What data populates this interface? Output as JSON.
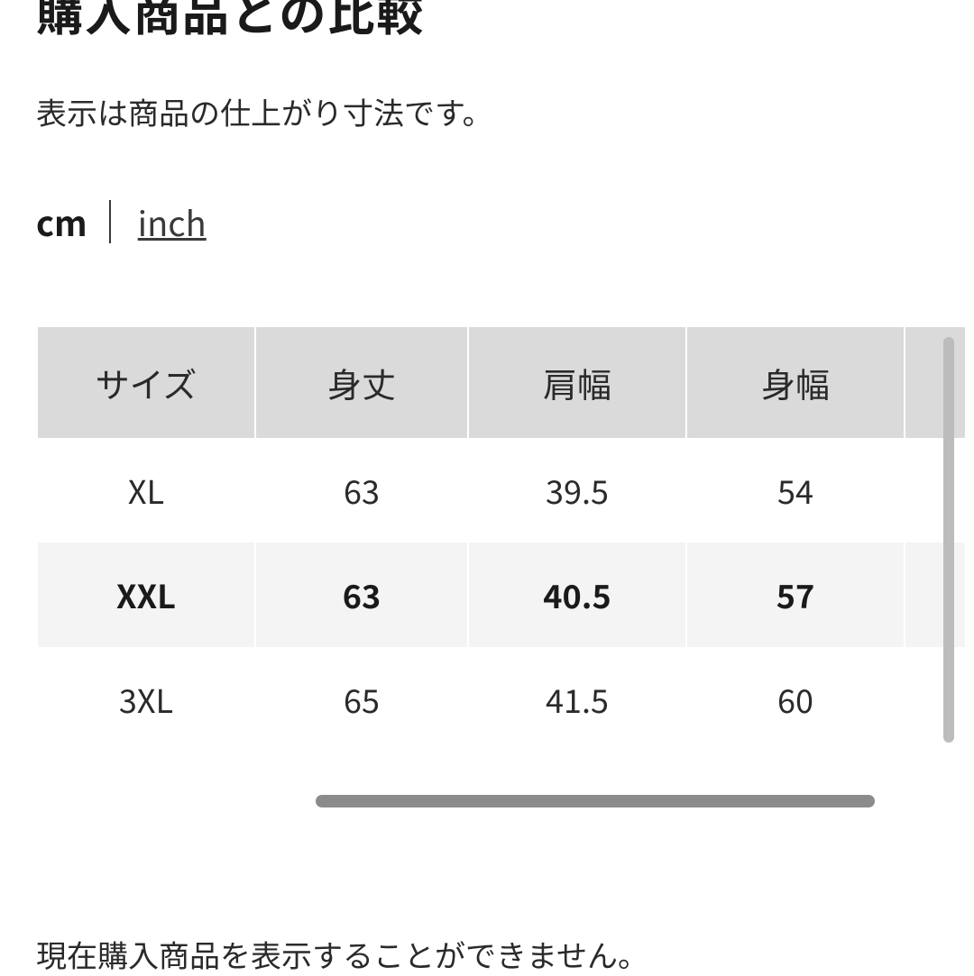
{
  "header": {
    "title": "購入商品との比較",
    "subtitle": "表示は商品の仕上がり寸法です。"
  },
  "unit_toggle": {
    "active": "cm",
    "link": "inch"
  },
  "size_table": {
    "type": "table",
    "header_bg": "#dadada",
    "highlight_bg": "#f4f4f4",
    "text_color": "#2a2a2a",
    "columns": [
      "サイズ",
      "身丈",
      "肩幅",
      "身幅",
      ""
    ],
    "rows": [
      {
        "cells": [
          "XL",
          "63",
          "39.5",
          "54",
          ""
        ],
        "highlight": false
      },
      {
        "cells": [
          "XXL",
          "63",
          "40.5",
          "57",
          ""
        ],
        "highlight": true
      },
      {
        "cells": [
          "3XL",
          "65",
          "41.5",
          "60",
          ""
        ],
        "highlight": false
      }
    ]
  },
  "footer": {
    "note": "現在購入商品を表示することができません。"
  }
}
